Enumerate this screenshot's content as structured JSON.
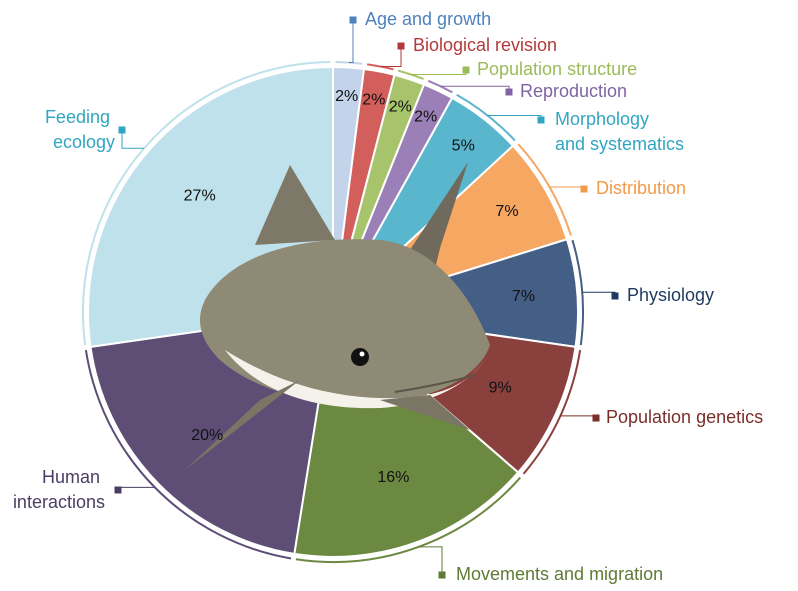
{
  "chart_data": {
    "type": "pie",
    "categories": [
      "Age and growth",
      "Biological revision",
      "Population structure",
      "Reproduction",
      "Morphology and systematics",
      "Distribution",
      "Physiology",
      "Population genetics",
      "Movements and migration",
      "Human interactions",
      "Feeding ecology"
    ],
    "values": [
      2,
      2,
      2,
      2,
      5,
      7,
      7,
      9,
      16,
      20,
      27
    ],
    "value_labels": [
      "2%",
      "2%",
      "2%",
      "2%",
      "5%",
      "7%",
      "7%",
      "9%",
      "16%",
      "20%",
      "27%"
    ],
    "colors": [
      "#c3d4ea",
      "#d35f5c",
      "#a7c46d",
      "#9a80b6",
      "#5ab6cd",
      "#f6a762",
      "#445f86",
      "#8a403c",
      "#6c8942",
      "#5e4e76",
      "#bfe1eb"
    ],
    "label_colors": [
      "#4f81bd",
      "#b23a3a",
      "#9bbb59",
      "#8064a2",
      "#31a5c2",
      "#f39a4a",
      "#1f3a5f",
      "#7a2e2a",
      "#5f7a35",
      "#4b3d63",
      "#31a5c2"
    ]
  }
}
